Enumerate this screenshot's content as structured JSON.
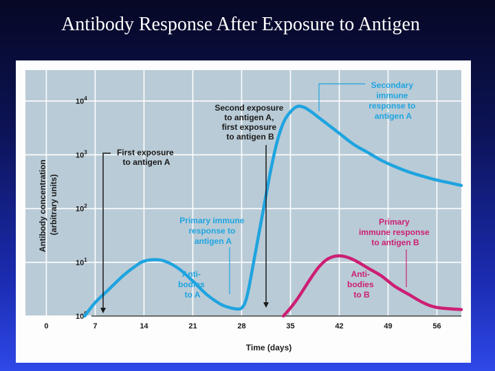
{
  "slide": {
    "title": "Antibody Response After Exposure to Antigen"
  },
  "colors": {
    "plot_background": "#b9cbd6",
    "antibody_a": "#1fa4e0",
    "antibody_b": "#cc1f74",
    "annotation_dark": "#1a1a1a"
  },
  "chart_data": {
    "type": "line",
    "xlabel": "Time (days)",
    "ylabel_line1": "Antibody concentration",
    "ylabel_line2": "(arbitrary units)",
    "x_ticks": [
      0,
      7,
      14,
      21,
      28,
      35,
      42,
      49,
      56
    ],
    "y_ticks": [
      {
        "value": 0,
        "base": "10",
        "exp": "0"
      },
      {
        "value": 1,
        "base": "10",
        "exp": "1"
      },
      {
        "value": 2,
        "base": "10",
        "exp": "2"
      },
      {
        "value": 3,
        "base": "10",
        "exp": "3"
      },
      {
        "value": 4,
        "base": "10",
        "exp": "4"
      }
    ],
    "xlim": [
      -3,
      59.5
    ],
    "ylim_log10": [
      0,
      4.5
    ],
    "y_scale": "log",
    "grid": true,
    "series": [
      {
        "key": "antibody_a",
        "x": [
          5.5,
          7,
          9,
          11,
          13,
          14,
          15.5,
          17,
          19,
          21,
          23,
          25,
          26.5,
          27.5,
          28,
          28.5,
          29,
          30,
          31,
          32,
          33,
          34,
          35,
          36,
          37,
          38,
          39,
          40,
          42,
          44,
          46,
          48,
          50,
          52,
          54,
          56,
          59.5
        ],
        "y": [
          0,
          0.25,
          0.5,
          0.75,
          0.95,
          1.02,
          1.05,
          1.02,
          0.88,
          0.65,
          0.4,
          0.22,
          0.15,
          0.13,
          0.15,
          0.25,
          0.5,
          1.2,
          1.9,
          2.6,
          3.2,
          3.6,
          3.8,
          3.9,
          3.88,
          3.8,
          3.7,
          3.6,
          3.4,
          3.2,
          3.05,
          2.9,
          2.78,
          2.68,
          2.6,
          2.53,
          2.43
        ]
      },
      {
        "key": "antibody_b",
        "x": [
          34,
          35,
          36,
          37,
          38,
          39,
          40,
          41,
          42,
          43,
          44,
          45,
          46,
          48,
          50,
          52,
          54,
          56,
          59.5
        ],
        "y": [
          0,
          0.15,
          0.32,
          0.52,
          0.72,
          0.9,
          1.03,
          1.1,
          1.12,
          1.1,
          1.05,
          0.98,
          0.9,
          0.75,
          0.55,
          0.4,
          0.25,
          0.16,
          0.12
        ]
      }
    ],
    "annotations": {
      "first_exposure": [
        "First exposure",
        "to antigen A"
      ],
      "second_exposure": [
        "Second exposure",
        "to antigen A,",
        "first exposure",
        "to antigen B"
      ],
      "secondary_response": [
        "Secondary",
        "immune",
        "response to",
        "antigen A"
      ],
      "primary_response_a": [
        "Primary immune",
        "response to",
        "antigen A"
      ],
      "primary_response_b": [
        "Primary",
        "immune response",
        "to antigen B"
      ],
      "antibodies_a": [
        "Anti-",
        "bodies",
        "to A"
      ],
      "antibodies_b": [
        "Anti-",
        "bodies",
        "to B"
      ]
    }
  }
}
